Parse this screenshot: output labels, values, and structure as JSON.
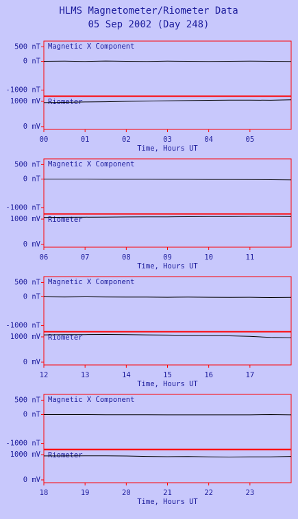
{
  "title": "HLMS Magnetometer/Riometer Data",
  "subtitle": "05 Sep 2002 (Day 248)",
  "chart_data": [
    {
      "type": "line",
      "annotation": "Magnetic X Component",
      "color": "#000000",
      "x": [
        0,
        0.5,
        1,
        1.5,
        2,
        2.5,
        3,
        3.5,
        4,
        4.5,
        5,
        5.5,
        6
      ],
      "values": [
        0,
        5,
        -5,
        10,
        0,
        -5,
        5,
        0,
        -5,
        0,
        5,
        0,
        -5
      ],
      "xlim": [
        0,
        6
      ],
      "ylim": [
        -1200,
        700
      ],
      "yticks": [
        {
          "value": 500,
          "label": "500 nT"
        },
        {
          "value": 0,
          "label": "0 nT"
        },
        {
          "value": -1000,
          "label": "-1000 nT"
        }
      ]
    },
    {
      "type": "line",
      "annotation": "Riometer",
      "color": "#000000",
      "x": [
        0,
        0.5,
        1,
        1.5,
        2,
        2.5,
        3,
        3.5,
        4,
        4.5,
        5,
        5.5,
        6
      ],
      "values": [
        950,
        960,
        975,
        985,
        1000,
        1010,
        1020,
        1030,
        1040,
        1050,
        1050,
        1045,
        1060
      ],
      "xlim": [
        0,
        6
      ],
      "ylim": [
        -110,
        1190
      ],
      "yticks": [
        {
          "value": 1000,
          "label": "1000 mV"
        },
        {
          "value": 0,
          "label": "0 mV"
        }
      ],
      "xticks": [
        {
          "value": 0,
          "label": "00"
        },
        {
          "value": 1,
          "label": "01"
        },
        {
          "value": 2,
          "label": "02"
        },
        {
          "value": 3,
          "label": "03"
        },
        {
          "value": 4,
          "label": "04"
        },
        {
          "value": 5,
          "label": "05"
        }
      ],
      "xlabel": "Time, Hours UT"
    },
    {
      "type": "line",
      "annotation": "Magnetic X Component",
      "color": "#000000",
      "x": [
        6,
        6.5,
        7,
        7.5,
        8,
        8.5,
        9,
        9.5,
        10,
        10.5,
        11,
        11.5,
        12
      ],
      "values": [
        0,
        0,
        0,
        -5,
        -5,
        -5,
        -10,
        -10,
        -15,
        -15,
        -20,
        -25,
        -30
      ],
      "xlim": [
        6,
        12
      ],
      "ylim": [
        -1200,
        700
      ],
      "yticks": [
        {
          "value": 500,
          "label": "500 nT"
        },
        {
          "value": 0,
          "label": "0 nT"
        },
        {
          "value": -1000,
          "label": "-1000 nT"
        }
      ]
    },
    {
      "type": "line",
      "annotation": "Riometer",
      "color": "#000000",
      "x": [
        6,
        6.5,
        7,
        7.5,
        8,
        8.5,
        9,
        9.5,
        10,
        10.5,
        11,
        11.5,
        12
      ],
      "values": [
        1060,
        1070,
        1075,
        1080,
        1085,
        1090,
        1090,
        1095,
        1100,
        1100,
        1110,
        1110,
        1100
      ],
      "xlim": [
        6,
        12
      ],
      "ylim": [
        -110,
        1190
      ],
      "yticks": [
        {
          "value": 1000,
          "label": "1000 mV"
        },
        {
          "value": 0,
          "label": "0 mV"
        }
      ],
      "xticks": [
        {
          "value": 6,
          "label": "06"
        },
        {
          "value": 7,
          "label": "07"
        },
        {
          "value": 8,
          "label": "08"
        },
        {
          "value": 9,
          "label": "09"
        },
        10,
        11
      ],
      "xlabel": "Time, Hours UT"
    },
    {
      "type": "line",
      "annotation": "Magnetic X Component",
      "color": "#000000",
      "x": [
        12,
        12.5,
        13,
        13.5,
        14,
        14.5,
        15,
        15.5,
        16,
        16.5,
        17,
        17.5,
        18
      ],
      "values": [
        0,
        -5,
        0,
        -5,
        -10,
        -10,
        -15,
        -10,
        -15,
        -20,
        -15,
        -25,
        -20
      ],
      "xlim": [
        12,
        18
      ],
      "ylim": [
        -1200,
        700
      ],
      "yticks": [
        {
          "value": 500,
          "label": "500 nT"
        },
        {
          "value": 0,
          "label": "0 nT"
        },
        {
          "value": -1000,
          "label": "-1000 nT"
        }
      ]
    },
    {
      "type": "line",
      "annotation": "Riometer",
      "color": "#000000",
      "x": [
        12,
        12.5,
        13,
        13.5,
        14,
        14.5,
        15,
        15.5,
        16,
        16.5,
        17,
        17.5,
        18
      ],
      "values": [
        1080,
        1090,
        1090,
        1095,
        1090,
        1080,
        1070,
        1060,
        1050,
        1040,
        1020,
        980,
        960
      ],
      "xlim": [
        12,
        18
      ],
      "ylim": [
        -110,
        1190
      ],
      "yticks": [
        {
          "value": 1000,
          "label": "1000 mV"
        },
        {
          "value": 0,
          "label": "0 mV"
        }
      ],
      "xticks": [
        12,
        13,
        14,
        15,
        16,
        17
      ],
      "xlabel": "Time, Hours UT"
    },
    {
      "type": "line",
      "annotation": "Magnetic X Component",
      "color": "#000000",
      "x": [
        18,
        18.5,
        19,
        19.5,
        20,
        20.5,
        21,
        21.5,
        22,
        22.5,
        23,
        23.5,
        24
      ],
      "values": [
        0,
        0,
        0,
        -5,
        -5,
        -5,
        -10,
        -10,
        -10,
        -10,
        -10,
        0,
        -10
      ],
      "xlim": [
        18,
        24
      ],
      "ylim": [
        -1200,
        700
      ],
      "yticks": [
        {
          "value": 500,
          "label": "500 nT"
        },
        {
          "value": 0,
          "label": "0 nT"
        },
        {
          "value": -1000,
          "label": "-1000 nT"
        }
      ]
    },
    {
      "type": "line",
      "annotation": "Riometer",
      "color": "#000000",
      "x": [
        18,
        18.5,
        19,
        19.5,
        20,
        20.5,
        21,
        21.5,
        22,
        22.5,
        23,
        23.5,
        24
      ],
      "values": [
        950,
        950,
        955,
        955,
        945,
        930,
        920,
        925,
        910,
        905,
        915,
        910,
        930
      ],
      "xlim": [
        18,
        24
      ],
      "ylim": [
        -110,
        1190
      ],
      "yticks": [
        {
          "value": 1000,
          "label": "1000 mV"
        },
        {
          "value": 0,
          "label": "0 mV"
        }
      ],
      "xticks": [
        18,
        19,
        20,
        21,
        22,
        23
      ],
      "xlabel": "Time, Hours UT"
    }
  ]
}
